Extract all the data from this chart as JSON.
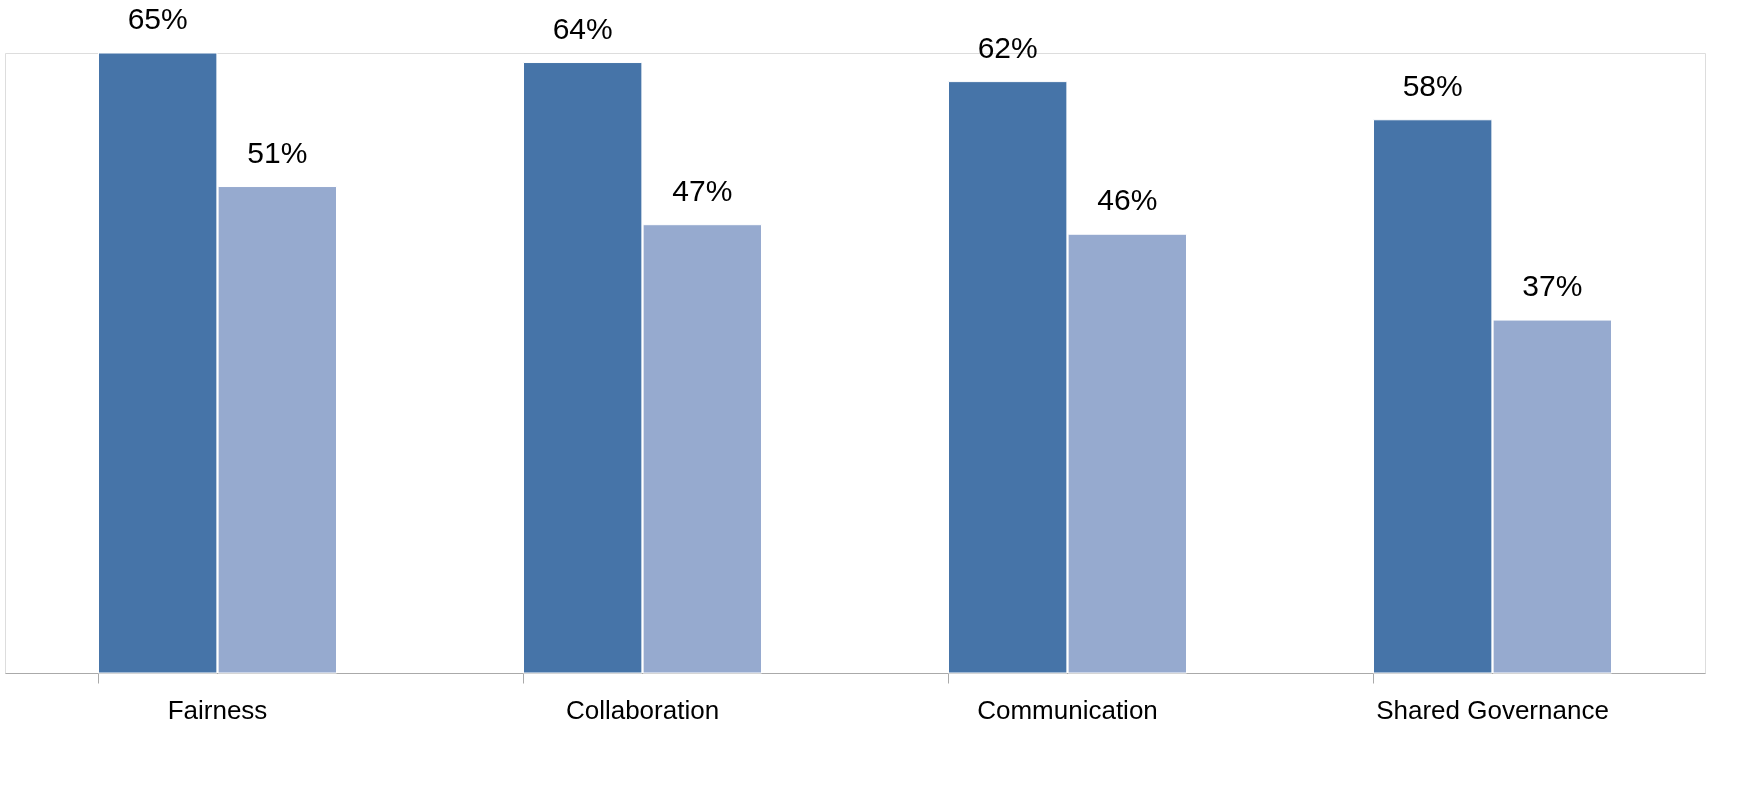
{
  "chart_data": {
    "type": "bar",
    "categories": [
      "Fairness",
      "Collaboration",
      "Communication",
      "Shared Governance"
    ],
    "series": [
      {
        "color": "#4674a8",
        "values": [
          65,
          64,
          62,
          58
        ],
        "value_labels": [
          "65%",
          "64%",
          "62%",
          "58%"
        ]
      },
      {
        "color": "#96aacf",
        "values": [
          51,
          47,
          46,
          37
        ],
        "value_labels": [
          "51%",
          "47%",
          "46%",
          "37%"
        ]
      }
    ],
    "grid": false,
    "legend": false
  }
}
